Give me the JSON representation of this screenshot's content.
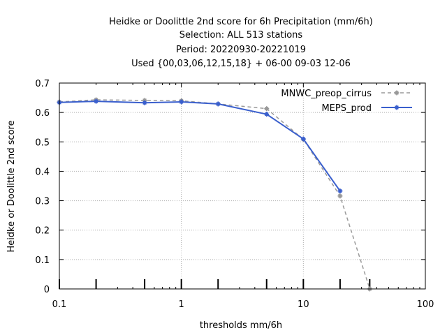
{
  "chart_data": {
    "type": "line",
    "title_lines": [
      "Heidke or Doolittle 2nd score  for 6h Precipitation (mm/6h)",
      "Selection: ALL    513 stations",
      "Period: 20220930-20221019",
      "Used {00,03,06,12,15,18} + 06-00 09-03 12-06"
    ],
    "xlabel": "thresholds mm/6h",
    "ylabel": "Heidke or Doolittle 2nd score",
    "xscale": "log",
    "xlim": [
      0.1,
      100
    ],
    "ylim": [
      0,
      0.7
    ],
    "x_ticks": [
      0.1,
      1,
      10,
      100
    ],
    "x_tick_labels": [
      "0.1",
      "1",
      "10",
      "100"
    ],
    "y_ticks": [
      0,
      0.1,
      0.2,
      0.3,
      0.4,
      0.5,
      0.6,
      0.7
    ],
    "y_tick_labels": [
      "0",
      "0.1",
      "0.2",
      "0.3",
      "0.4",
      "0.5",
      "0.6",
      "0.7"
    ],
    "count_marker_x": [
      0.1,
      0.2,
      0.5,
      1,
      2,
      5,
      10,
      20,
      35
    ],
    "grid": true,
    "legend_position": "top-right",
    "series": [
      {
        "name": "MNWC_preop_cirrus",
        "color": "#999999",
        "style": "dashed",
        "x": [
          0.1,
          0.2,
          0.5,
          1,
          2,
          5,
          10,
          20,
          35
        ],
        "y": [
          0.636,
          0.643,
          0.641,
          0.64,
          0.629,
          0.613,
          0.509,
          0.316,
          0.0
        ]
      },
      {
        "name": "MEPS_prod",
        "color": "#3a5fcd",
        "style": "solid",
        "x": [
          0.1,
          0.2,
          0.5,
          1,
          2,
          5,
          10,
          20
        ],
        "y": [
          0.634,
          0.638,
          0.633,
          0.636,
          0.629,
          0.594,
          0.51,
          0.333
        ]
      }
    ]
  }
}
